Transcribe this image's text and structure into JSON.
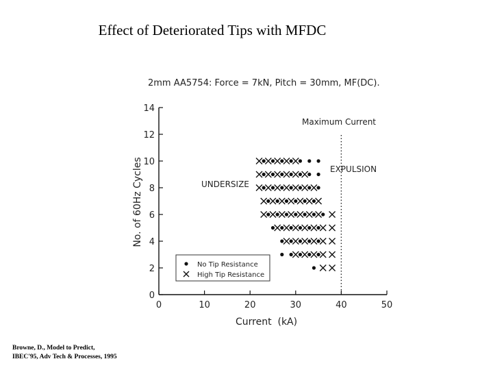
{
  "slide": {
    "title": "Effect of Deteriorated Tips with MFDC",
    "citation_line1": "Browne, D., Model to Predict,",
    "citation_line2": "IBEC'95, Adv Tech & Processes, 1995"
  },
  "chart_data": {
    "type": "scatter",
    "title": "2mm AA5754: Force = 7kN, Pitch = 30mm, MF(DC).",
    "xlabel": "Current  (kA)",
    "ylabel": "No. of 60Hz Cycles",
    "xlim": [
      0,
      50
    ],
    "ylim": [
      0,
      14
    ],
    "xticks": [
      "0",
      "10",
      "20",
      "30",
      "40",
      "50"
    ],
    "yticks": [
      "0",
      "2",
      "4",
      "6",
      "8",
      "10",
      "12",
      "14"
    ],
    "grid": false,
    "legend_position": "bottom-left",
    "annotations": [
      {
        "text": "Maximum Current"
      },
      {
        "text": "EXPULSION"
      },
      {
        "text": "UNDERSIZE"
      }
    ],
    "reference_lines": [
      {
        "axis": "x",
        "value": 40,
        "style": "dotted"
      }
    ],
    "series": [
      {
        "name": "No Tip Resistance",
        "marker": "dot",
        "points": [
          [
            23,
            10
          ],
          [
            25,
            10
          ],
          [
            27,
            10
          ],
          [
            29,
            10
          ],
          [
            31,
            10
          ],
          [
            33,
            10
          ],
          [
            35,
            10
          ],
          [
            23,
            9
          ],
          [
            25,
            9
          ],
          [
            27,
            9
          ],
          [
            29,
            9
          ],
          [
            31,
            9
          ],
          [
            33,
            9
          ],
          [
            35,
            9
          ],
          [
            23,
            8
          ],
          [
            25,
            8
          ],
          [
            27,
            8
          ],
          [
            29,
            8
          ],
          [
            31,
            8
          ],
          [
            33,
            8
          ],
          [
            35,
            8
          ],
          [
            24,
            7
          ],
          [
            26,
            7
          ],
          [
            28,
            7
          ],
          [
            30,
            7
          ],
          [
            32,
            7
          ],
          [
            34,
            7
          ],
          [
            24,
            6
          ],
          [
            26,
            6
          ],
          [
            28,
            6
          ],
          [
            30,
            6
          ],
          [
            32,
            6
          ],
          [
            34,
            6
          ],
          [
            36,
            6
          ],
          [
            25,
            5
          ],
          [
            27,
            5
          ],
          [
            29,
            5
          ],
          [
            31,
            5
          ],
          [
            33,
            5
          ],
          [
            35,
            5
          ],
          [
            27,
            4
          ],
          [
            29,
            4
          ],
          [
            31,
            4
          ],
          [
            33,
            4
          ],
          [
            35,
            4
          ],
          [
            27,
            3
          ],
          [
            29,
            3
          ],
          [
            31,
            3
          ],
          [
            33,
            3
          ],
          [
            35,
            3
          ],
          [
            34,
            2
          ]
        ]
      },
      {
        "name": "High Tip Resistance",
        "marker": "x",
        "points": [
          [
            22,
            10
          ],
          [
            24,
            10
          ],
          [
            26,
            10
          ],
          [
            28,
            10
          ],
          [
            30,
            10
          ],
          [
            22,
            9
          ],
          [
            24,
            9
          ],
          [
            26,
            9
          ],
          [
            28,
            9
          ],
          [
            30,
            9
          ],
          [
            32,
            9
          ],
          [
            22,
            8
          ],
          [
            24,
            8
          ],
          [
            26,
            8
          ],
          [
            28,
            8
          ],
          [
            30,
            8
          ],
          [
            32,
            8
          ],
          [
            34,
            8
          ],
          [
            23,
            7
          ],
          [
            25,
            7
          ],
          [
            27,
            7
          ],
          [
            29,
            7
          ],
          [
            31,
            7
          ],
          [
            33,
            7
          ],
          [
            35,
            7
          ],
          [
            23,
            6
          ],
          [
            25,
            6
          ],
          [
            27,
            6
          ],
          [
            29,
            6
          ],
          [
            31,
            6
          ],
          [
            33,
            6
          ],
          [
            35,
            6
          ],
          [
            38,
            6
          ],
          [
            26,
            5
          ],
          [
            28,
            5
          ],
          [
            30,
            5
          ],
          [
            32,
            5
          ],
          [
            34,
            5
          ],
          [
            36,
            5
          ],
          [
            38,
            5
          ],
          [
            28,
            4
          ],
          [
            30,
            4
          ],
          [
            32,
            4
          ],
          [
            34,
            4
          ],
          [
            36,
            4
          ],
          [
            38,
            4
          ],
          [
            30,
            3
          ],
          [
            32,
            3
          ],
          [
            34,
            3
          ],
          [
            36,
            3
          ],
          [
            38,
            3
          ],
          [
            36,
            2
          ],
          [
            38,
            2
          ]
        ]
      }
    ]
  }
}
